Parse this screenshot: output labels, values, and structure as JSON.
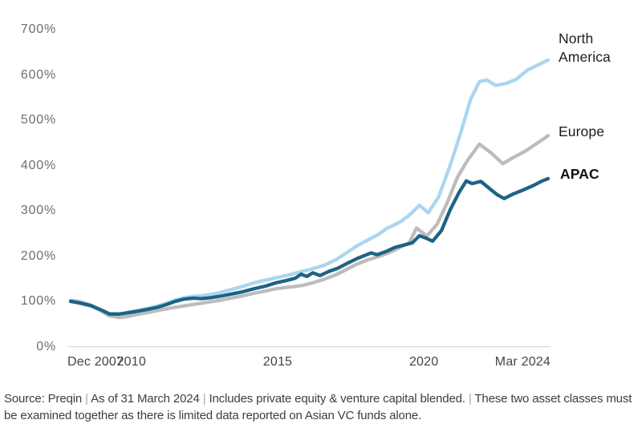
{
  "chart_data": {
    "type": "line",
    "title": "",
    "unit": "%",
    "x_axis": {
      "range_t": [
        2007.92,
        2024.25
      ],
      "ticks": [
        {
          "label": "Dec 2007",
          "t": 2007.92
        },
        {
          "label": "2010",
          "t": 2010.0
        },
        {
          "label": "2015",
          "t": 2015.0
        },
        {
          "label": "2020",
          "t": 2020.0
        },
        {
          "label": "Mar 2024",
          "t": 2024.25
        }
      ]
    },
    "y_axis": {
      "range": [
        0,
        700
      ],
      "ticks": [
        {
          "label": "0%",
          "value": 0
        },
        {
          "label": "100%",
          "value": 100
        },
        {
          "label": "200%",
          "value": 200
        },
        {
          "label": "300%",
          "value": 300
        },
        {
          "label": "400%",
          "value": 400
        },
        {
          "label": "500%",
          "value": 500
        },
        {
          "label": "600%",
          "value": 600
        },
        {
          "label": "700%",
          "value": 700
        }
      ],
      "gridlines": false,
      "baseline_color": "#d9d9d9"
    },
    "legend_position": "right-of-line-ends",
    "series": [
      {
        "name": "North America",
        "color": "#a9d6f0",
        "points": [
          [
            2007.92,
            100
          ],
          [
            2008.2,
            96
          ],
          [
            2008.6,
            90
          ],
          [
            2009.0,
            79
          ],
          [
            2009.25,
            73
          ],
          [
            2009.6,
            72
          ],
          [
            2009.9,
            76
          ],
          [
            2010.2,
            80
          ],
          [
            2010.6,
            85
          ],
          [
            2010.9,
            90
          ],
          [
            2011.2,
            96
          ],
          [
            2011.5,
            103
          ],
          [
            2011.8,
            108
          ],
          [
            2012.1,
            111
          ],
          [
            2012.4,
            112
          ],
          [
            2012.7,
            115
          ],
          [
            2013.0,
            119
          ],
          [
            2013.4,
            126
          ],
          [
            2013.8,
            133
          ],
          [
            2014.2,
            141
          ],
          [
            2014.6,
            147
          ],
          [
            2014.95,
            152
          ],
          [
            2015.3,
            157
          ],
          [
            2015.6,
            162
          ],
          [
            2015.9,
            167
          ],
          [
            2016.2,
            172
          ],
          [
            2016.6,
            180
          ],
          [
            2017.0,
            192
          ],
          [
            2017.35,
            207
          ],
          [
            2017.7,
            222
          ],
          [
            2018.1,
            236
          ],
          [
            2018.45,
            248
          ],
          [
            2018.7,
            260
          ],
          [
            2018.9,
            266
          ],
          [
            2019.2,
            276
          ],
          [
            2019.5,
            290
          ],
          [
            2019.85,
            312
          ],
          [
            2020.15,
            296
          ],
          [
            2020.5,
            330
          ],
          [
            2020.9,
            400
          ],
          [
            2021.25,
            470
          ],
          [
            2021.6,
            546
          ],
          [
            2021.9,
            585
          ],
          [
            2022.15,
            589
          ],
          [
            2022.45,
            577
          ],
          [
            2022.8,
            581
          ],
          [
            2023.15,
            590
          ],
          [
            2023.55,
            611
          ],
          [
            2023.9,
            622
          ],
          [
            2024.25,
            633
          ]
        ]
      },
      {
        "name": "Europe",
        "color": "#bcbcbc",
        "points": [
          [
            2007.92,
            102
          ],
          [
            2008.2,
            100
          ],
          [
            2008.6,
            92
          ],
          [
            2009.0,
            77
          ],
          [
            2009.25,
            68
          ],
          [
            2009.6,
            64
          ],
          [
            2009.9,
            67
          ],
          [
            2010.2,
            71
          ],
          [
            2010.6,
            76
          ],
          [
            2011.0,
            81
          ],
          [
            2011.4,
            86
          ],
          [
            2011.8,
            90
          ],
          [
            2012.2,
            94
          ],
          [
            2012.6,
            98
          ],
          [
            2013.0,
            102
          ],
          [
            2013.4,
            107
          ],
          [
            2013.8,
            112
          ],
          [
            2014.2,
            118
          ],
          [
            2014.6,
            123
          ],
          [
            2014.95,
            128
          ],
          [
            2015.3,
            131
          ],
          [
            2015.6,
            133
          ],
          [
            2015.9,
            136
          ],
          [
            2016.2,
            141
          ],
          [
            2016.6,
            149
          ],
          [
            2017.0,
            159
          ],
          [
            2017.35,
            170
          ],
          [
            2017.7,
            182
          ],
          [
            2018.1,
            192
          ],
          [
            2018.5,
            200
          ],
          [
            2018.9,
            210
          ],
          [
            2019.2,
            220
          ],
          [
            2019.5,
            229
          ],
          [
            2019.75,
            262
          ],
          [
            2020.1,
            244
          ],
          [
            2020.45,
            270
          ],
          [
            2020.8,
            318
          ],
          [
            2021.15,
            374
          ],
          [
            2021.5,
            412
          ],
          [
            2021.9,
            447
          ],
          [
            2022.3,
            428
          ],
          [
            2022.7,
            404
          ],
          [
            2023.1,
            419
          ],
          [
            2023.45,
            431
          ],
          [
            2023.8,
            446
          ],
          [
            2024.1,
            459
          ],
          [
            2024.25,
            466
          ]
        ]
      },
      {
        "name": "APAC",
        "color": "#1d6385",
        "bold_label": true,
        "points": [
          [
            2007.92,
            100
          ],
          [
            2008.2,
            97
          ],
          [
            2008.6,
            91
          ],
          [
            2009.0,
            80
          ],
          [
            2009.25,
            72
          ],
          [
            2009.6,
            72
          ],
          [
            2009.9,
            75
          ],
          [
            2010.2,
            78
          ],
          [
            2010.6,
            83
          ],
          [
            2010.9,
            87
          ],
          [
            2011.2,
            93
          ],
          [
            2011.5,
            100
          ],
          [
            2011.8,
            105
          ],
          [
            2012.1,
            107
          ],
          [
            2012.4,
            106
          ],
          [
            2012.7,
            108
          ],
          [
            2013.0,
            111
          ],
          [
            2013.4,
            116
          ],
          [
            2013.8,
            121
          ],
          [
            2014.2,
            128
          ],
          [
            2014.6,
            134
          ],
          [
            2014.95,
            141
          ],
          [
            2015.3,
            146
          ],
          [
            2015.6,
            151
          ],
          [
            2015.8,
            160
          ],
          [
            2016.0,
            155
          ],
          [
            2016.2,
            163
          ],
          [
            2016.45,
            157
          ],
          [
            2016.75,
            166
          ],
          [
            2017.05,
            173
          ],
          [
            2017.35,
            183
          ],
          [
            2017.7,
            194
          ],
          [
            2018.0,
            202
          ],
          [
            2018.2,
            207
          ],
          [
            2018.4,
            203
          ],
          [
            2018.7,
            210
          ],
          [
            2019.0,
            219
          ],
          [
            2019.3,
            224
          ],
          [
            2019.6,
            229
          ],
          [
            2019.85,
            245
          ],
          [
            2020.1,
            239
          ],
          [
            2020.3,
            233
          ],
          [
            2020.6,
            256
          ],
          [
            2020.9,
            302
          ],
          [
            2021.2,
            340
          ],
          [
            2021.45,
            366
          ],
          [
            2021.65,
            360
          ],
          [
            2021.95,
            365
          ],
          [
            2022.25,
            349
          ],
          [
            2022.5,
            336
          ],
          [
            2022.75,
            327
          ],
          [
            2023.05,
            337
          ],
          [
            2023.4,
            346
          ],
          [
            2023.75,
            356
          ],
          [
            2024.05,
            366
          ],
          [
            2024.25,
            371
          ]
        ]
      }
    ]
  },
  "footnote": {
    "segments": [
      "Source: Preqin",
      "As of 31 March 2024",
      "Includes private equity & venture capital blended.",
      "These two asset classes must be examined together as there is limited data reported on Asian VC funds alone."
    ],
    "separator": "|"
  }
}
